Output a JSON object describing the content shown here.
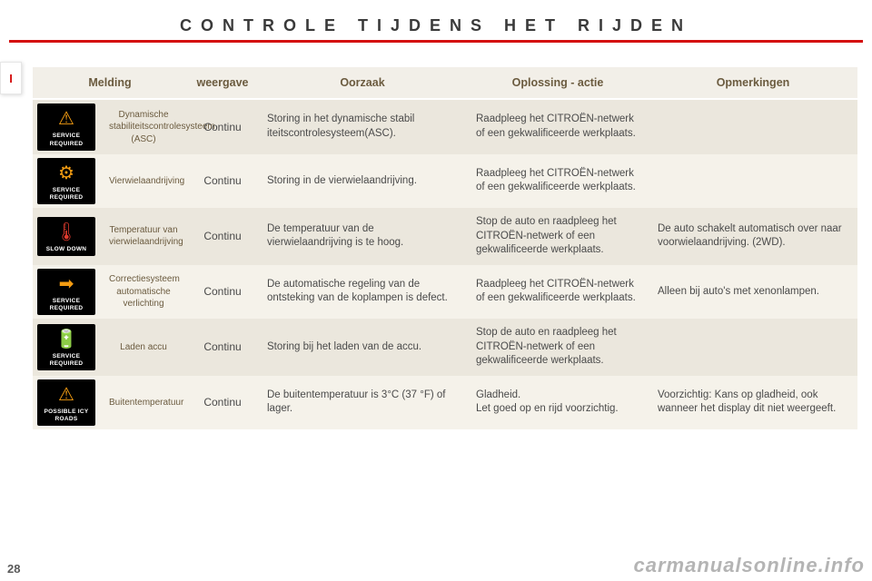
{
  "page": {
    "title": "CONTROLE TIJDENS HET RIJDEN",
    "side_tab": "I",
    "page_number": "28",
    "watermark": "carmanualsonline.info"
  },
  "colors": {
    "accent_red": "#d40e0e",
    "header_bg": "#f2efe8",
    "row_odd": "#ebe7dd",
    "row_even": "#f5f2ea",
    "icon_bg": "#000000",
    "icon_orange": "#f39c12",
    "icon_red": "#e23b2e",
    "text": "#4a4a4a",
    "header_text": "#6b5b3f"
  },
  "table": {
    "headers": {
      "melding": "Melding",
      "weergave": "weergave",
      "oorzaak": "Oorzaak",
      "oplossing": "Oplossing - actie",
      "opmerkingen": "Opmerkingen"
    },
    "rows": [
      {
        "icon": {
          "glyph": "⚠",
          "glyph_color": "orange",
          "caption": "SERVICE\nREQUIRED"
        },
        "name": "Dynamische stabiliteitscontrolesysteem (ASC)",
        "weergave": "Continu",
        "oorzaak": "Storing in het dynamische stabil iteitscontrolesysteem(ASC).",
        "oplossing": "Raadpleeg het CITROËN-netwerk of een gekwalificeerde werkplaats.",
        "opmerkingen": ""
      },
      {
        "icon": {
          "glyph": "⚙",
          "glyph_color": "orange",
          "caption": "SERVICE\nREQUIRED"
        },
        "name": "Vierwielaandrijving",
        "weergave": "Continu",
        "oorzaak": "Storing in de vierwielaandrijving.",
        "oplossing": "Raadpleeg het CITROËN-netwerk of een gekwalificeerde werkplaats.",
        "opmerkingen": ""
      },
      {
        "icon": {
          "glyph": "🌡",
          "glyph_color": "red",
          "caption": "SLOW DOWN"
        },
        "name": "Temperatuur van vierwielaandrijving",
        "weergave": "Continu",
        "oorzaak": "De temperatuur van de vierwielaandrijving is te hoog.",
        "oplossing": "Stop de auto en raadpleeg het CITROËN-netwerk of een gekwalificeerde werkplaats.",
        "opmerkingen": "De auto schakelt automatisch over naar voorwielaandrijving. (2WD)."
      },
      {
        "icon": {
          "glyph": "➡",
          "glyph_color": "orange",
          "caption": "SERVICE\nREQUIRED"
        },
        "name": "Correctiesysteem automatische verlichting",
        "weergave": "Continu",
        "oorzaak": "De automatische regeling van de ontsteking van de koplampen is defect.",
        "oplossing": "Raadpleeg het CITROËN-netwerk of een gekwalificeerde werkplaats.",
        "opmerkingen": "Alleen bij auto's met xenonlampen."
      },
      {
        "icon": {
          "glyph": "🔋",
          "glyph_color": "red",
          "caption": "SERVICE\nREQUIRED"
        },
        "name": "Laden accu",
        "weergave": "Continu",
        "oorzaak": "Storing bij het laden van de accu.",
        "oplossing": "Stop de auto en raadpleeg het CITROËN-netwerk of een gekwalificeerde werkplaats.",
        "opmerkingen": ""
      },
      {
        "icon": {
          "glyph": "⚠",
          "glyph_color": "orange",
          "caption": "POSSIBLE ICY\nROADS"
        },
        "name": "Buitentemperatuur",
        "weergave": "Continu",
        "oorzaak": "De buitentemperatuur is 3°C (37 °F) of lager.",
        "oplossing": "Gladheid.\nLet goed op en rijd voorzichtig.",
        "opmerkingen": "Voorzichtig: Kans op gladheid, ook wanneer het display dit niet weergeeft."
      }
    ]
  }
}
